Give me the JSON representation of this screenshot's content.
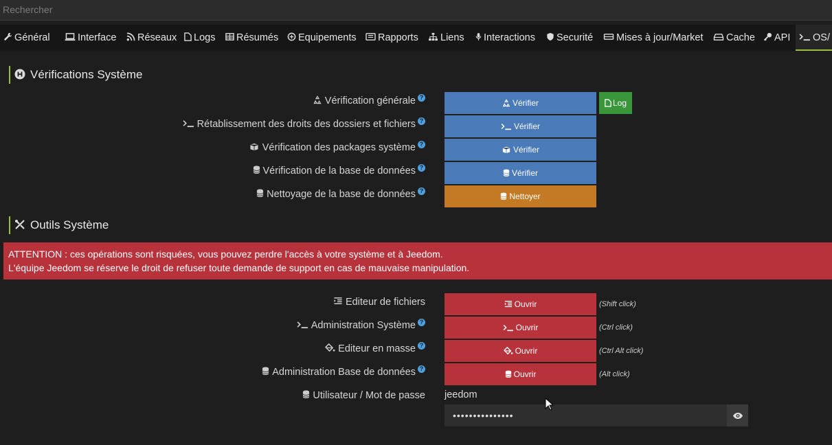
{
  "search": {
    "placeholder": "Rechercher"
  },
  "tabs": [
    {
      "label": "Général"
    },
    {
      "label": "Interface"
    },
    {
      "label": "Réseaux"
    },
    {
      "label": "Logs"
    },
    {
      "label": "Résumés"
    },
    {
      "label": "Equipements"
    },
    {
      "label": "Rapports"
    },
    {
      "label": "Liens"
    },
    {
      "label": "Interactions"
    },
    {
      "label": "Securité"
    },
    {
      "label": "Mises à jour/Market"
    },
    {
      "label": "Cache"
    },
    {
      "label": "API"
    },
    {
      "label": "OS/"
    }
  ],
  "verifications": {
    "title": "Vérifications Système",
    "rows": [
      {
        "label": "Vérification générale",
        "button": "Vérifier"
      },
      {
        "label": "Rétablissement des droits des dossiers et fichiers",
        "button": "Vérifier"
      },
      {
        "label": "Vérification des packages système",
        "button": "Vérifier"
      },
      {
        "label": "Vérification de la base de données",
        "button": "Vérifier"
      },
      {
        "label": "Nettoyage de la base de données",
        "button": "Nettoyer"
      }
    ],
    "log_button": "Log"
  },
  "tools": {
    "title": "Outils Système",
    "alert_line1": "ATTENTION : ces opérations sont risquées, vous pouvez perdre l'accès à votre système et à Jeedom.",
    "alert_line2": "L'équipe Jeedom se réserve le droit de refuser toute demande de support en cas de mauvaise manipulation.",
    "rows": [
      {
        "label": "Editeur de fichiers",
        "button": "Ouvrir",
        "hint": "(Shift click)"
      },
      {
        "label": "Administration Système",
        "button": "Ouvrir",
        "hint": "(Ctrl click)"
      },
      {
        "label": "Editeur en masse",
        "button": "Ouvrir",
        "hint": "(Ctrl Alt click)"
      },
      {
        "label": "Administration Base de données",
        "button": "Ouvrir",
        "hint": "(Alt click)"
      }
    ],
    "credentials_label": "Utilisateur / Mot de passe",
    "user": "jeedom",
    "password_mask": "•••••••••••••••"
  },
  "colors": {
    "accent": "#9bc13c",
    "blue": "#4a7ab8",
    "orange": "#c47a24",
    "red": "#b8323c",
    "green": "#3a963a"
  }
}
